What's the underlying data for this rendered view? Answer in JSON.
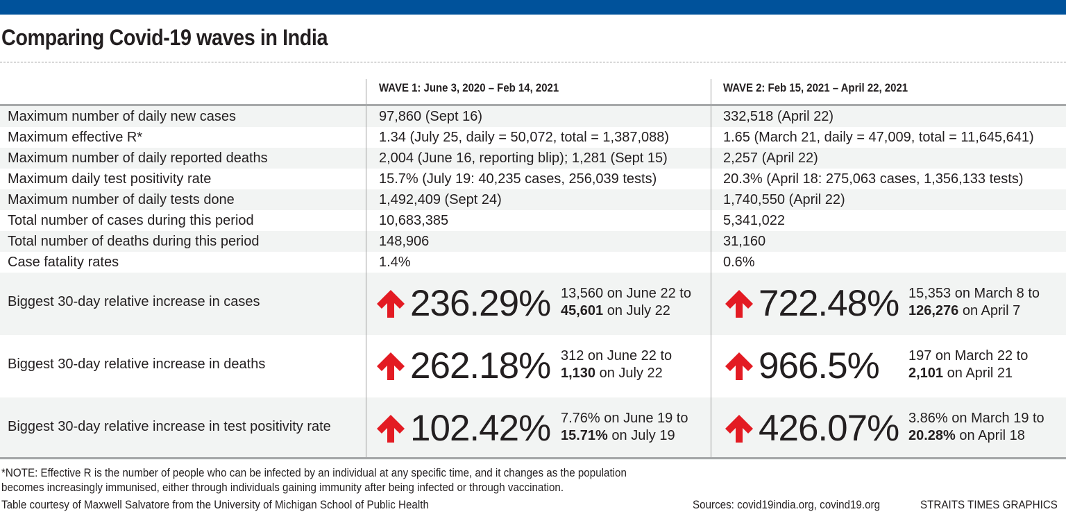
{
  "colors": {
    "topbar": "#00529b",
    "arrow": "#e31b23",
    "shade": "#f2f4f3",
    "text": "#231f20"
  },
  "title": "Comparing Covid-19 waves in India",
  "chart_data": {
    "type": "table",
    "title": "Comparing Covid-19 waves in India",
    "columns": [
      "",
      "WAVE 1: June 3, 2020 – Feb 14, 2021",
      "WAVE 2: Feb 15, 2021 – April 22, 2021"
    ],
    "rows": [
      {
        "label": "Maximum number of daily new cases",
        "wave1": "97,860 (Sept 16)",
        "wave2": "332,518 (April 22)"
      },
      {
        "label": "Maximum effective R*",
        "wave1": "1.34 (July 25, daily = 50,072, total = 1,387,088)",
        "wave2": "1.65 (March 21, daily = 47,009, total = 11,645,641)"
      },
      {
        "label": "Maximum number of daily reported deaths",
        "wave1": "2,004 (June 16, reporting blip); 1,281 (Sept 15)",
        "wave2": "2,257 (April 22)"
      },
      {
        "label": "Maximum daily test positivity rate",
        "wave1": "15.7% (July 19: 40,235 cases, 256,039 tests)",
        "wave2": "20.3% (April 18: 275,063 cases, 1,356,133 tests)"
      },
      {
        "label": "Maximum number of daily tests done",
        "wave1": "1,492,409 (Sept 24)",
        "wave2": "1,740,550 (April 22)"
      },
      {
        "label": "Total number of cases during this period",
        "wave1": "10,683,385",
        "wave2": "5,341,022"
      },
      {
        "label": "Total number of deaths during this period",
        "wave1": "148,906",
        "wave2": "31,160"
      },
      {
        "label": "Case fatality rates",
        "wave1": "1.4%",
        "wave2": "0.6%"
      }
    ],
    "increase_rows": [
      {
        "label": "Biggest 30-day relative increase in cases",
        "wave1": {
          "pct": "236.29%",
          "from": "13,560 on June 22 to",
          "to_bold": "45,601",
          "to_rest": " on July 22"
        },
        "wave2": {
          "pct": "722.48%",
          "from": "15,353 on March 8 to",
          "to_bold": "126,276",
          "to_rest": " on April 7"
        }
      },
      {
        "label": "Biggest 30-day relative increase in deaths",
        "wave1": {
          "pct": "262.18%",
          "from": "312 on June 22 to",
          "to_bold": "1,130",
          "to_rest": " on July 22"
        },
        "wave2": {
          "pct": "966.5%",
          "from": "197 on March 22 to",
          "to_bold": "2,101",
          "to_rest": " on April 21"
        }
      },
      {
        "label": "Biggest 30-day relative increase in test positivity rate",
        "wave1": {
          "pct": "102.42%",
          "from": "7.76% on June 19 to",
          "to_bold": "15.71%",
          "to_rest": " on July 19"
        },
        "wave2": {
          "pct": "426.07%",
          "from": "3.86% on March 19 to",
          "to_bold": "20.28%",
          "to_rest": " on April 18"
        }
      }
    ],
    "arrow_icon": "up-arrow-icon"
  },
  "footer": {
    "note_line1": "*NOTE: Effective R is the number of people who can be infected by an individual at any specific time, and it changes as the population",
    "note_line2": "becomes increasingly immunised, either through individuals gaining immunity after being infected or through vaccination.",
    "courtesy": "Table courtesy of Maxwell Salvatore from the University of Michigan School of Public Health",
    "sources": "Sources: covid19india.org, covind19.org",
    "credit": "STRAITS TIMES GRAPHICS"
  }
}
